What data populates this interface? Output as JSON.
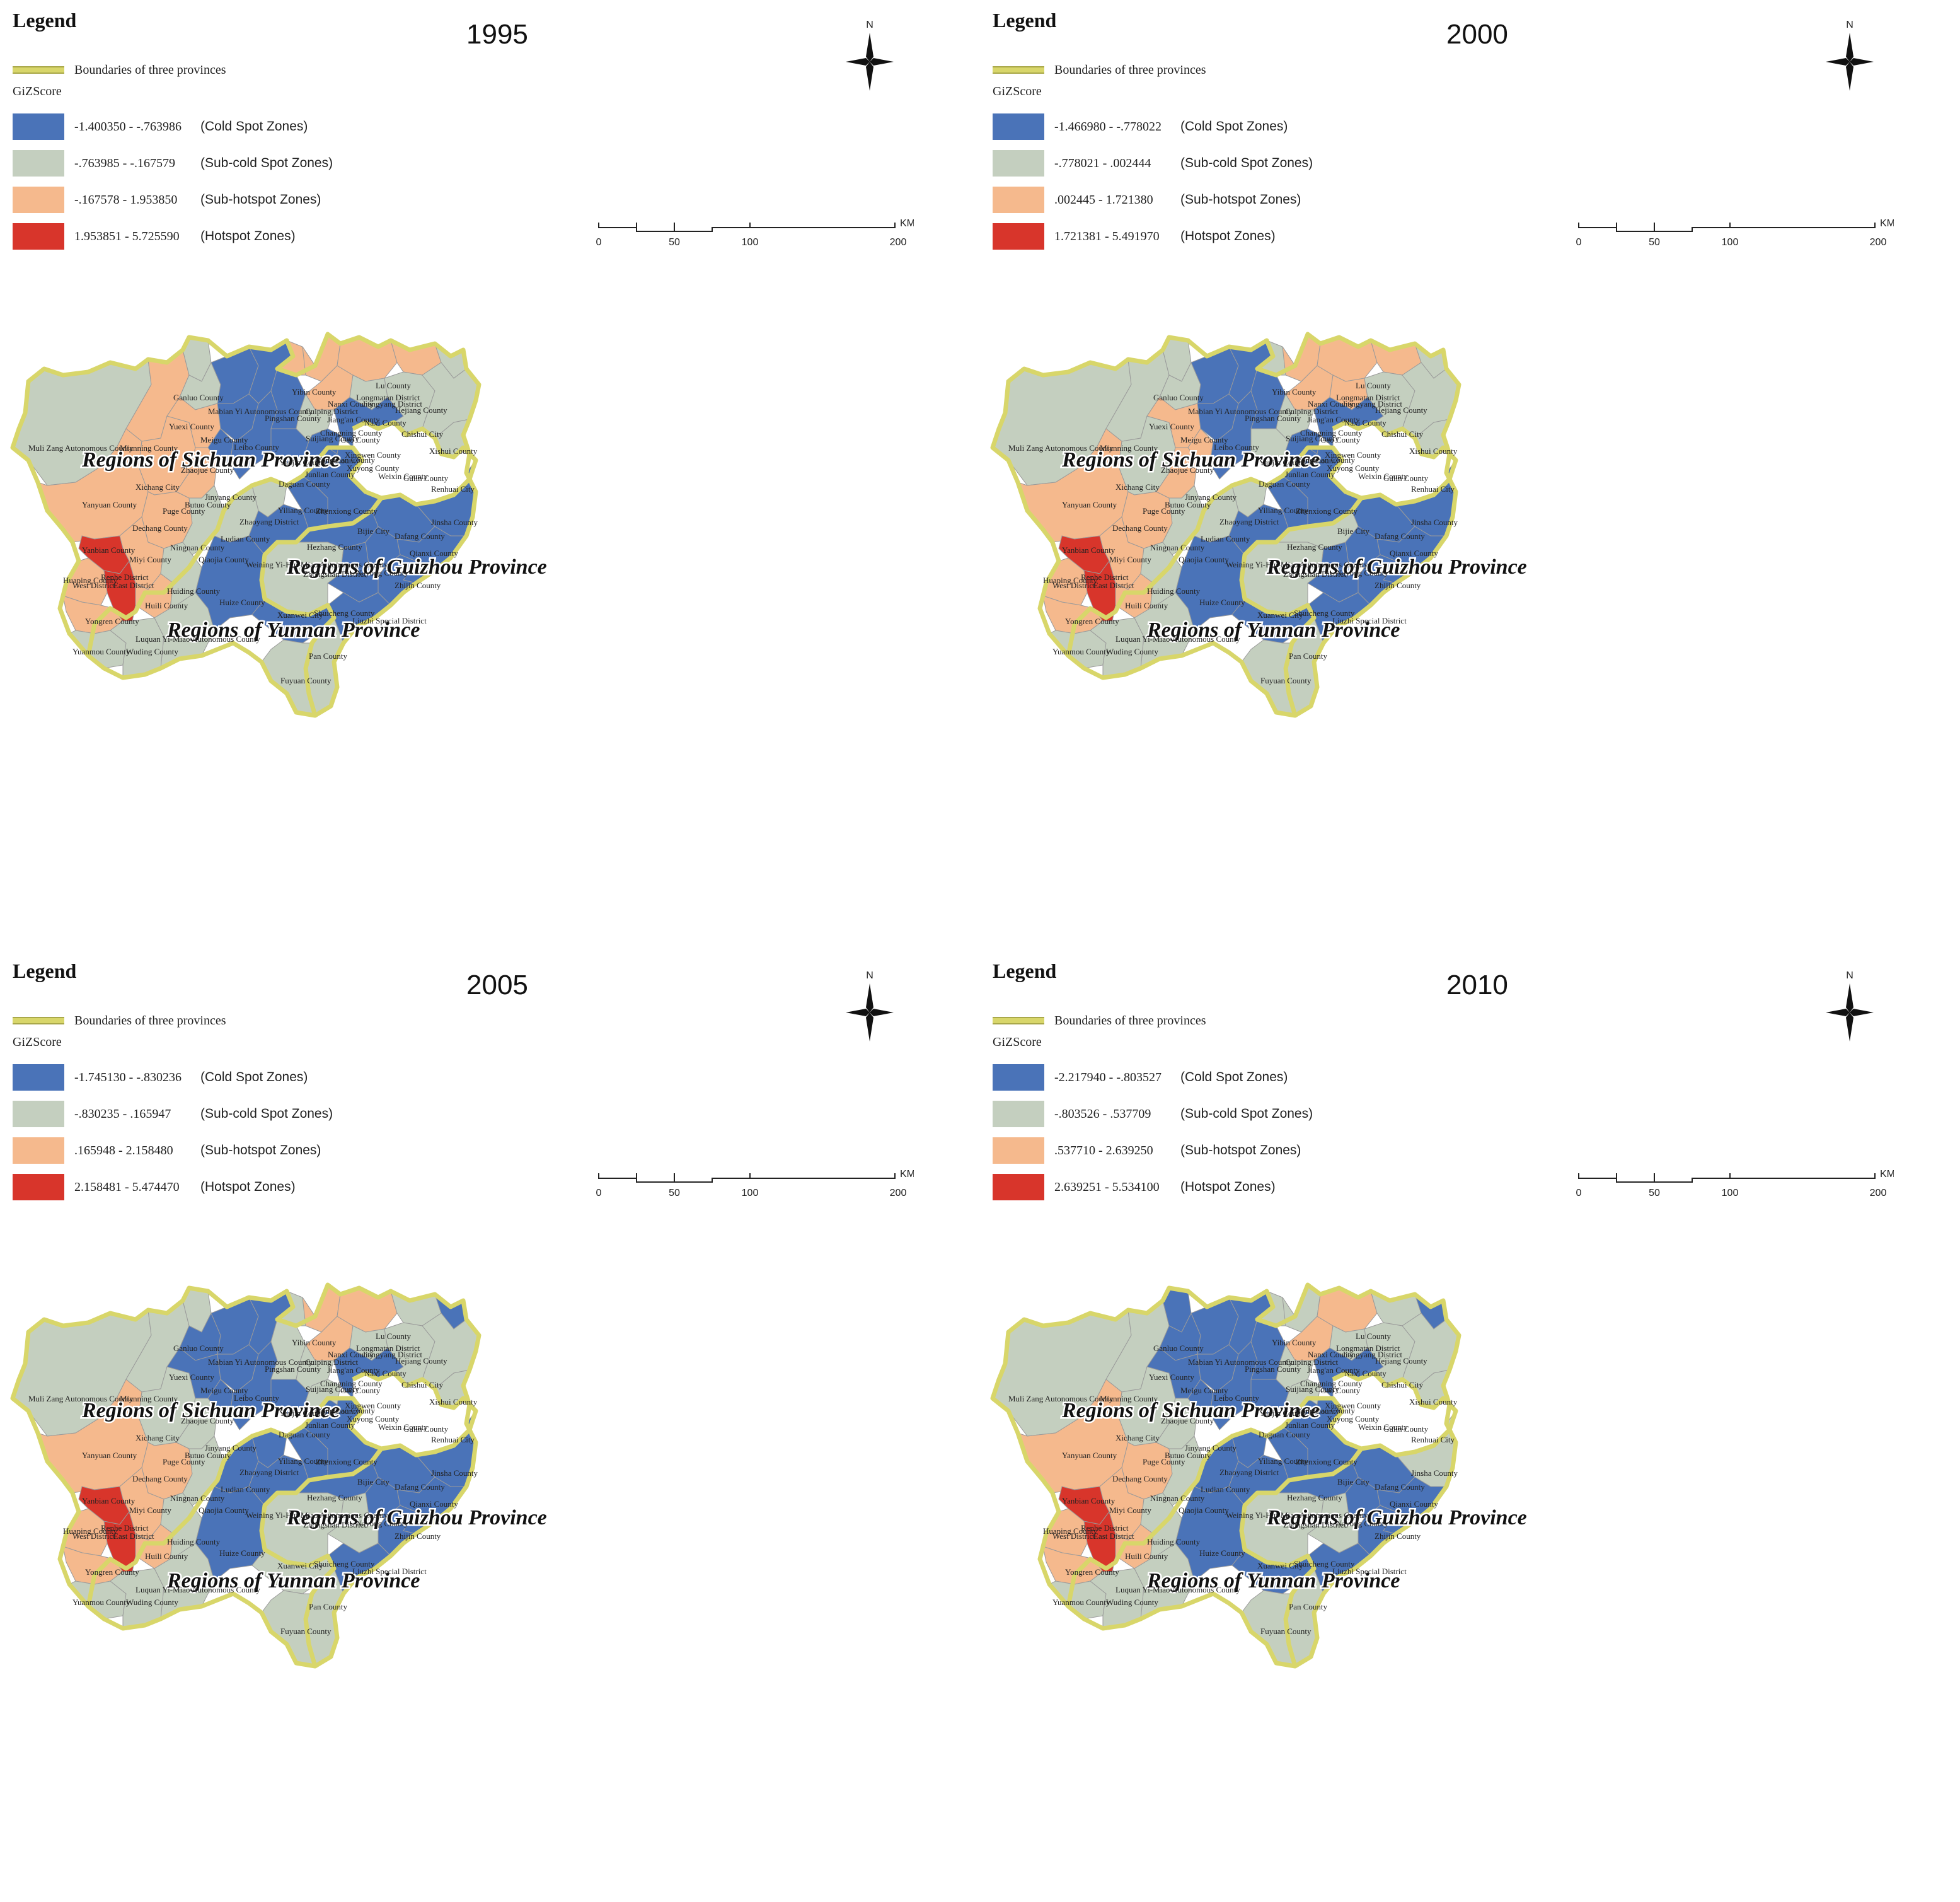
{
  "legend": {
    "title": "Legend",
    "boundary_label": "Boundaries of three provinces",
    "score_label": "GiZScore",
    "class_names": [
      "(Cold Spot Zones)",
      "(Sub-cold Spot Zones)",
      "(Sub-hotspot Zones)",
      "(Hotspot Zones)"
    ],
    "colors": {
      "cold": "#4a73b8",
      "subcold": "#c4cfbf",
      "subhot": "#f5b98d",
      "hot": "#d8352b",
      "boundary": "#d8d66a"
    }
  },
  "scalebar": {
    "unit": "KM",
    "ticks": [
      "0",
      "50",
      "100",
      "200"
    ]
  },
  "north_label": "N",
  "regions": {
    "sichuan": "Regions of Sichuan Province",
    "guizhou": "Regions of Guizhou Province",
    "yunnan": "Regions of Yunnan Province"
  },
  "places": [
    "Muli Zang Autonomous County",
    "Mianning County",
    "Xichang City",
    "Yanyuan County",
    "Dechang County",
    "Miyi County",
    "Yanbian County",
    "Renhe District",
    "East District",
    "West District",
    "Huili County",
    "Huiding County",
    "Yuanmou County",
    "Wuding County",
    "Yongren County",
    "Luquan Yi-Miao Autonomous County",
    "Huaping County",
    "Ganluo County",
    "Yuexi County",
    "Zhaojue County",
    "Meigu County",
    "Leibo County",
    "Puge County",
    "Butuo County",
    "Jinyang County",
    "Ningnan County",
    "Qiaojia County",
    "Ludian County",
    "Huize County",
    "Xuanwei City",
    "Zhaoyang District",
    "Yiliang County",
    "Zhenxiong County",
    "Yanjin County",
    "Daguan County",
    "Yongshan County",
    "Suijiang County",
    "Pingshan County",
    "Yibin County",
    "Lu County",
    "Naxi County",
    "Hejiang County",
    "Xuyong County",
    "Gulin County",
    "Chishui City",
    "Xishui County",
    "Renhuai City",
    "Jinsha County",
    "Bijie City",
    "Dafang County",
    "Qianxi County",
    "Nayong County",
    "Zhijin County",
    "Hezhang County",
    "Weining Yi-Hui-Miao Autonomous County",
    "Zhongshan District",
    "Shuicheng County",
    "Liuzhi Special District",
    "Pan County",
    "Fuyuan County",
    "Changning County",
    "Gao County",
    "Junlian County",
    "Gong County",
    "Xingwen County",
    "Jiang'an County",
    "Nanxi County",
    "Jiangyang District",
    "Longmatan District",
    "Cuiping District",
    "Weixin County",
    "Mabian Yi Autonomous County"
  ],
  "panels": [
    {
      "year": "1995",
      "ranges": [
        "-1.400350 - -.763986",
        "-.763985 - -.167579",
        "-.167578 - 1.953850",
        "1.953851 - 5.725590"
      ],
      "zones": {
        "muli": "subcold",
        "mianning": "subhot",
        "yanyuan": "subhot",
        "xichang": "subhot",
        "dechang": "subhot",
        "miyi": "subhot",
        "yanbian": "hot",
        "panzhihua": "hot",
        "huaping": "subhot",
        "huili": "subhot",
        "huiding": "subcold",
        "yongren": "subhot",
        "yuanmou": "subcold",
        "wuding": "subcold",
        "luquan": "subcold",
        "ganluo": "subcold",
        "yuexi": "subcold",
        "zhaojue": "subhot",
        "meigu": "cold",
        "leibo": "cold",
        "puge": "subhot",
        "butuo": "cold",
        "jinyang": "cold",
        "ningnan": "subcold",
        "qiaojia": "subcold",
        "ludian": "subcold",
        "huize": "cold",
        "xuanwei": "cold",
        "zhaoyang": "cold",
        "yiliang": "cold",
        "zhenxiong": "cold",
        "yanjin": "cold",
        "daguan": "cold",
        "yongshan": "cold",
        "pingshan": "subhot",
        "yibin": "subhot",
        "luzhou": "subhot",
        "hejiang": "subhot",
        "naxi": "subcold",
        "xuyong": "cold",
        "gulin": "subcold",
        "chishui": "subcold",
        "xishui": "subcold",
        "renhuai": "subcold",
        "jinsha": "cold",
        "bijie": "cold",
        "dafang": "cold",
        "qianxi": "cold",
        "nayong": "cold",
        "zhijin": "cold",
        "hezhang": "cold",
        "weining": "subcold",
        "liupanshui": "cold",
        "liuzhi": "cold",
        "pan": "subcold",
        "fuyuan": "subcold",
        "changning": "subhot",
        "gongxian": "cold",
        "junlian": "subcold"
      }
    },
    {
      "year": "2000",
      "ranges": [
        "-1.466980 - -.778022",
        "-.778021 - .002444",
        ".002445 - 1.721380",
        "1.721381 - 5.491970"
      ],
      "zones": {
        "muli": "subcold",
        "mianning": "subcold",
        "yanyuan": "subhot",
        "xichang": "subcold",
        "dechang": "subhot",
        "miyi": "subhot",
        "yanbian": "hot",
        "panzhihua": "hot",
        "huaping": "subhot",
        "huili": "subhot",
        "huiding": "subcold",
        "yongren": "subhot",
        "yuanmou": "subcold",
        "wuding": "subcold",
        "luquan": "subcold",
        "ganluo": "subcold",
        "yuexi": "subcold",
        "zhaojue": "subhot",
        "meigu": "cold",
        "leibo": "cold",
        "puge": "subhot",
        "butuo": "subhot",
        "jinyang": "cold",
        "ningnan": "subcold",
        "qiaojia": "subcold",
        "ludian": "subcold",
        "huize": "cold",
        "xuanwei": "cold",
        "zhaoyang": "cold",
        "yiliang": "cold",
        "zhenxiong": "cold",
        "yanjin": "cold",
        "daguan": "subcold",
        "yongshan": "cold",
        "pingshan": "subcold",
        "yibin": "subhot",
        "luzhou": "subhot",
        "hejiang": "subhot",
        "naxi": "subhot",
        "xuyong": "cold",
        "gulin": "subcold",
        "chishui": "subcold",
        "xishui": "subcold",
        "renhuai": "subcold",
        "jinsha": "cold",
        "bijie": "cold",
        "dafang": "cold",
        "qianxi": "cold",
        "nayong": "cold",
        "zhijin": "cold",
        "hezhang": "subcold",
        "weining": "subcold",
        "liupanshui": "cold",
        "liuzhi": "cold",
        "pan": "subcold",
        "fuyuan": "subcold",
        "changning": "subhot",
        "gongxian": "cold",
        "junlian": "subcold"
      }
    },
    {
      "year": "2005",
      "ranges": [
        "-1.745130 - -.830236",
        "-.830235 - .165947",
        ".165948 - 2.158480",
        "2.158481 - 5.474470"
      ],
      "zones": {
        "muli": "subcold",
        "mianning": "subcold",
        "yanyuan": "subhot",
        "xichang": "subcold",
        "dechang": "subhot",
        "miyi": "subhot",
        "yanbian": "hot",
        "panzhihua": "hot",
        "huaping": "subhot",
        "huili": "subhot",
        "huiding": "subcold",
        "yongren": "subhot",
        "yuanmou": "subcold",
        "wuding": "subcold",
        "luquan": "subcold",
        "ganluo": "subcold",
        "yuexi": "cold",
        "zhaojue": "cold",
        "meigu": "cold",
        "leibo": "cold",
        "puge": "subcold",
        "butuo": "cold",
        "jinyang": "cold",
        "ningnan": "subcold",
        "qiaojia": "cold",
        "ludian": "cold",
        "huize": "cold",
        "xuanwei": "subcold",
        "zhaoyang": "cold",
        "yiliang": "cold",
        "zhenxiong": "cold",
        "yanjin": "subcold",
        "daguan": "cold",
        "yongshan": "cold",
        "pingshan": "subcold",
        "yibin": "subhot",
        "luzhou": "subhot",
        "hejiang": "subcold",
        "naxi": "subcold",
        "xuyong": "cold",
        "gulin": "subcold",
        "chishui": "cold",
        "xishui": "subcold",
        "renhuai": "subcold",
        "jinsha": "cold",
        "bijie": "cold",
        "dafang": "cold",
        "qianxi": "cold",
        "nayong": "cold",
        "zhijin": "cold",
        "hezhang": "cold",
        "weining": "subcold",
        "liupanshui": "subcold",
        "liuzhi": "cold",
        "pan": "subcold",
        "fuyuan": "subcold",
        "changning": "subhot",
        "gongxian": "subcold",
        "junlian": "subcold"
      }
    },
    {
      "year": "2010",
      "ranges": [
        "-2.217940 - -.803527",
        "-.803526 - .537709",
        ".537710 - 2.639250",
        "2.639251 - 5.534100"
      ],
      "zones": {
        "muli": "subcold",
        "mianning": "subcold",
        "yanyuan": "subhot",
        "xichang": "subcold",
        "dechang": "subhot",
        "miyi": "subhot",
        "yanbian": "hot",
        "panzhihua": "hot",
        "huaping": "subhot",
        "huili": "subhot",
        "huiding": "subcold",
        "yongren": "subhot",
        "yuanmou": "subcold",
        "wuding": "subcold",
        "luquan": "subcold",
        "ganluo": "cold",
        "yuexi": "cold",
        "zhaojue": "cold",
        "meigu": "cold",
        "leibo": "cold",
        "puge": "subcold",
        "butuo": "cold",
        "jinyang": "cold",
        "ningnan": "subcold",
        "qiaojia": "cold",
        "ludian": "cold",
        "huize": "cold",
        "xuanwei": "cold",
        "zhaoyang": "cold",
        "yiliang": "cold",
        "zhenxiong": "cold",
        "yanjin": "cold",
        "daguan": "cold",
        "yongshan": "cold",
        "pingshan": "subcold",
        "yibin": "subcold",
        "luzhou": "subhot",
        "hejiang": "subcold",
        "naxi": "subcold",
        "xuyong": "cold",
        "gulin": "subcold",
        "chishui": "cold",
        "xishui": "subcold",
        "renhuai": "subcold",
        "jinsha": "subcold",
        "bijie": "cold",
        "dafang": "cold",
        "qianxi": "cold",
        "nayong": "cold",
        "zhijin": "cold",
        "hezhang": "cold",
        "weining": "subcold",
        "liupanshui": "subcold",
        "liuzhi": "cold",
        "pan": "subcold",
        "fuyuan": "subcold",
        "changning": "subhot",
        "gongxian": "subcold",
        "junlian": "subcold"
      }
    }
  ]
}
